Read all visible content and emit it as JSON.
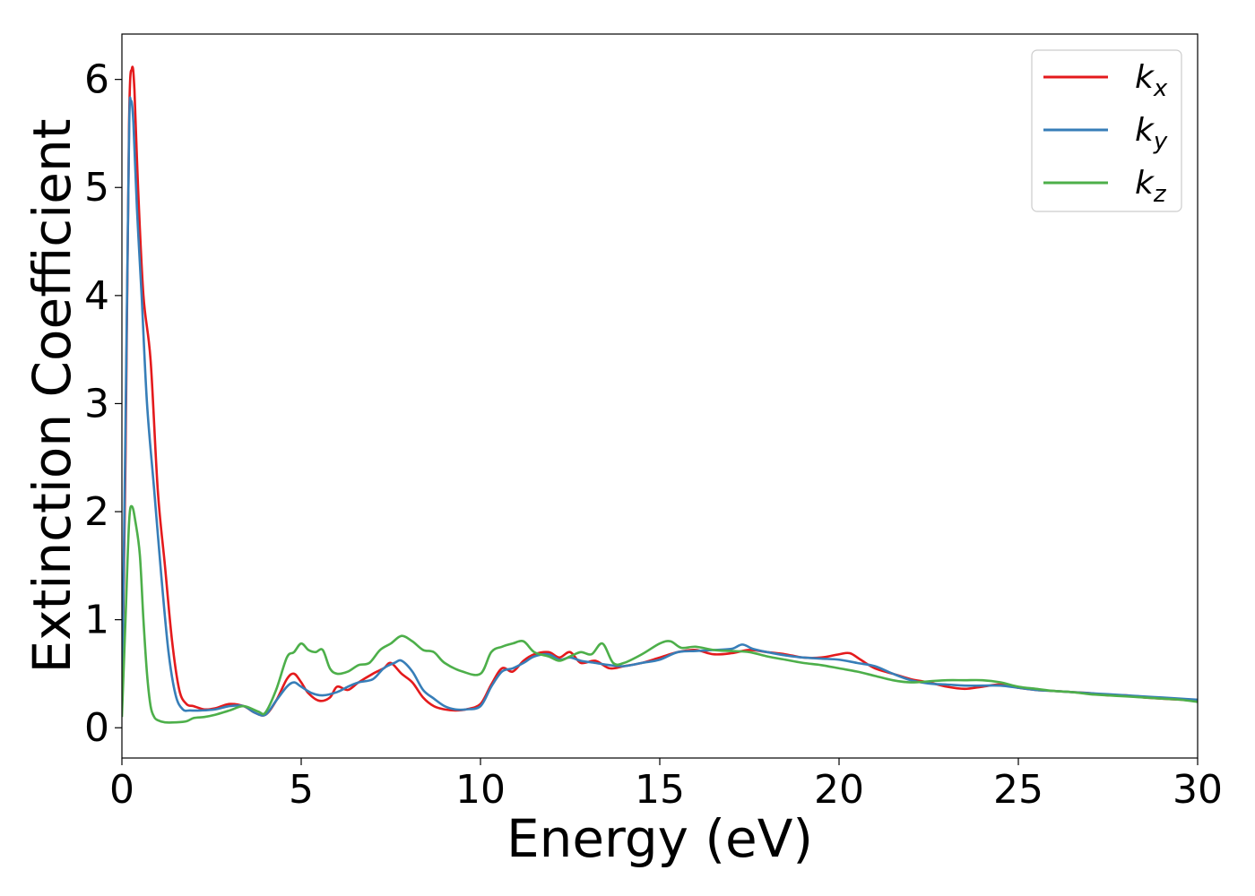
{
  "chart_data": {
    "type": "line",
    "title": "",
    "xlabel": "Energy (eV)",
    "ylabel": "Extinction Coefficient",
    "xlim": [
      0,
      30
    ],
    "ylim": [
      -0.28,
      6.42
    ],
    "xticks": [
      "0",
      "5",
      "10",
      "15",
      "20",
      "25",
      "30"
    ],
    "xtick_values": [
      0,
      5,
      10,
      15,
      20,
      25,
      30
    ],
    "yticks": [
      "0",
      "1",
      "2",
      "3",
      "4",
      "5",
      "6"
    ],
    "ytick_values": [
      0,
      1,
      2,
      3,
      4,
      5,
      6
    ],
    "grid": false,
    "legend_position": "top-right",
    "series": [
      {
        "name": "k",
        "subscript": "x",
        "color": "#e41a1c",
        "x": [
          0,
          0.1,
          0.2,
          0.28,
          0.35,
          0.45,
          0.6,
          0.8,
          1.0,
          1.2,
          1.4,
          1.6,
          1.8,
          2.0,
          2.3,
          2.6,
          3.0,
          3.4,
          3.7,
          4.0,
          4.3,
          4.6,
          4.8,
          5.0,
          5.2,
          5.5,
          5.8,
          6.0,
          6.3,
          6.6,
          7.0,
          7.3,
          7.5,
          7.8,
          8.1,
          8.4,
          8.7,
          9.0,
          9.3,
          9.6,
          10.0,
          10.3,
          10.6,
          10.9,
          11.2,
          11.5,
          11.9,
          12.2,
          12.5,
          12.8,
          13.2,
          13.6,
          14.0,
          14.5,
          15.0,
          15.5,
          16.0,
          16.5,
          17.0,
          17.5,
          18.0,
          18.5,
          19.0,
          19.5,
          20.0,
          20.3,
          20.6,
          21.0,
          21.5,
          22.0,
          22.5,
          23.0,
          23.5,
          24.0,
          24.5,
          25.0,
          25.5,
          26.0,
          26.5,
          27.0,
          27.5,
          28.0,
          28.5,
          29.0,
          29.5,
          30.0
        ],
        "y": [
          0.2,
          2.5,
          5.6,
          6.1,
          5.9,
          5.0,
          4.0,
          3.4,
          2.2,
          1.5,
          0.8,
          0.35,
          0.22,
          0.2,
          0.17,
          0.18,
          0.22,
          0.2,
          0.14,
          0.12,
          0.25,
          0.45,
          0.5,
          0.42,
          0.32,
          0.25,
          0.28,
          0.38,
          0.35,
          0.42,
          0.5,
          0.55,
          0.6,
          0.5,
          0.42,
          0.28,
          0.2,
          0.17,
          0.16,
          0.17,
          0.22,
          0.4,
          0.55,
          0.52,
          0.62,
          0.68,
          0.7,
          0.65,
          0.7,
          0.6,
          0.62,
          0.55,
          0.57,
          0.6,
          0.65,
          0.7,
          0.72,
          0.68,
          0.69,
          0.72,
          0.7,
          0.68,
          0.65,
          0.65,
          0.68,
          0.69,
          0.63,
          0.55,
          0.5,
          0.45,
          0.42,
          0.38,
          0.36,
          0.38,
          0.4,
          0.37,
          0.35,
          0.34,
          0.33,
          0.32,
          0.3,
          0.3,
          0.28,
          0.27,
          0.26,
          0.25
        ]
      },
      {
        "name": "k",
        "subscript": "y",
        "color": "#377eb8",
        "x": [
          0,
          0.1,
          0.2,
          0.25,
          0.32,
          0.42,
          0.55,
          0.7,
          0.9,
          1.1,
          1.3,
          1.5,
          1.7,
          1.9,
          2.2,
          2.6,
          3.0,
          3.4,
          3.7,
          4.0,
          4.3,
          4.6,
          4.8,
          5.0,
          5.3,
          5.6,
          6.0,
          6.3,
          6.6,
          7.0,
          7.3,
          7.6,
          7.8,
          8.1,
          8.4,
          8.7,
          9.0,
          9.3,
          9.6,
          10.0,
          10.3,
          10.6,
          10.9,
          11.2,
          11.5,
          11.9,
          12.2,
          12.5,
          12.8,
          13.2,
          13.6,
          14.0,
          14.5,
          15.0,
          15.5,
          16.0,
          16.5,
          17.0,
          17.3,
          17.6,
          18.0,
          18.5,
          19.0,
          19.5,
          20.0,
          20.5,
          21.0,
          21.5,
          22.0,
          22.5,
          23.0,
          23.5,
          24.0,
          24.5,
          25.0,
          25.5,
          26.0,
          26.5,
          27.0,
          27.5,
          28.0,
          28.5,
          29.0,
          29.5,
          30.0
        ],
        "y": [
          0.2,
          2.8,
          5.5,
          5.8,
          5.6,
          4.8,
          4.0,
          3.0,
          2.2,
          1.4,
          0.7,
          0.3,
          0.17,
          0.16,
          0.16,
          0.17,
          0.2,
          0.2,
          0.14,
          0.12,
          0.25,
          0.38,
          0.42,
          0.38,
          0.32,
          0.3,
          0.33,
          0.38,
          0.42,
          0.45,
          0.55,
          0.6,
          0.62,
          0.52,
          0.35,
          0.27,
          0.2,
          0.17,
          0.17,
          0.2,
          0.38,
          0.52,
          0.55,
          0.6,
          0.66,
          0.68,
          0.63,
          0.65,
          0.62,
          0.6,
          0.58,
          0.57,
          0.6,
          0.63,
          0.7,
          0.71,
          0.72,
          0.73,
          0.77,
          0.73,
          0.7,
          0.67,
          0.65,
          0.64,
          0.63,
          0.6,
          0.57,
          0.5,
          0.44,
          0.41,
          0.4,
          0.39,
          0.39,
          0.39,
          0.37,
          0.35,
          0.34,
          0.33,
          0.32,
          0.31,
          0.3,
          0.29,
          0.28,
          0.27,
          0.26
        ]
      },
      {
        "name": "k",
        "subscript": "z",
        "color": "#4daf4a",
        "x": [
          0,
          0.1,
          0.2,
          0.28,
          0.38,
          0.5,
          0.6,
          0.7,
          0.8,
          0.9,
          1.0,
          1.2,
          1.5,
          1.8,
          2.0,
          2.3,
          2.6,
          3.0,
          3.4,
          3.8,
          4.0,
          4.3,
          4.6,
          4.8,
          5.0,
          5.2,
          5.4,
          5.6,
          5.8,
          6.0,
          6.3,
          6.6,
          6.9,
          7.2,
          7.5,
          7.8,
          8.1,
          8.4,
          8.7,
          9.0,
          9.5,
          10.0,
          10.3,
          10.6,
          10.9,
          11.2,
          11.5,
          11.9,
          12.2,
          12.5,
          12.8,
          13.1,
          13.4,
          13.7,
          14.0,
          14.5,
          15.0,
          15.3,
          15.6,
          16.0,
          16.5,
          17.0,
          17.5,
          18.0,
          18.5,
          19.0,
          19.5,
          20.0,
          20.5,
          21.0,
          21.5,
          22.0,
          22.5,
          23.0,
          23.5,
          24.0,
          24.5,
          25.0,
          25.5,
          26.0,
          26.5,
          27.0,
          27.5,
          28.0,
          28.5,
          29.0,
          29.5,
          30.0
        ],
        "y": [
          0.1,
          1.0,
          1.9,
          2.05,
          1.9,
          1.6,
          1.0,
          0.5,
          0.2,
          0.1,
          0.07,
          0.05,
          0.05,
          0.06,
          0.09,
          0.1,
          0.12,
          0.16,
          0.2,
          0.15,
          0.14,
          0.35,
          0.65,
          0.7,
          0.78,
          0.72,
          0.7,
          0.72,
          0.55,
          0.5,
          0.52,
          0.58,
          0.6,
          0.72,
          0.78,
          0.85,
          0.8,
          0.72,
          0.7,
          0.6,
          0.52,
          0.5,
          0.7,
          0.75,
          0.78,
          0.8,
          0.7,
          0.66,
          0.62,
          0.66,
          0.7,
          0.68,
          0.78,
          0.6,
          0.6,
          0.68,
          0.78,
          0.8,
          0.74,
          0.75,
          0.72,
          0.71,
          0.7,
          0.66,
          0.63,
          0.6,
          0.58,
          0.55,
          0.52,
          0.48,
          0.44,
          0.42,
          0.43,
          0.44,
          0.44,
          0.44,
          0.42,
          0.38,
          0.36,
          0.34,
          0.33,
          0.31,
          0.3,
          0.29,
          0.28,
          0.27,
          0.26,
          0.24
        ]
      }
    ]
  }
}
